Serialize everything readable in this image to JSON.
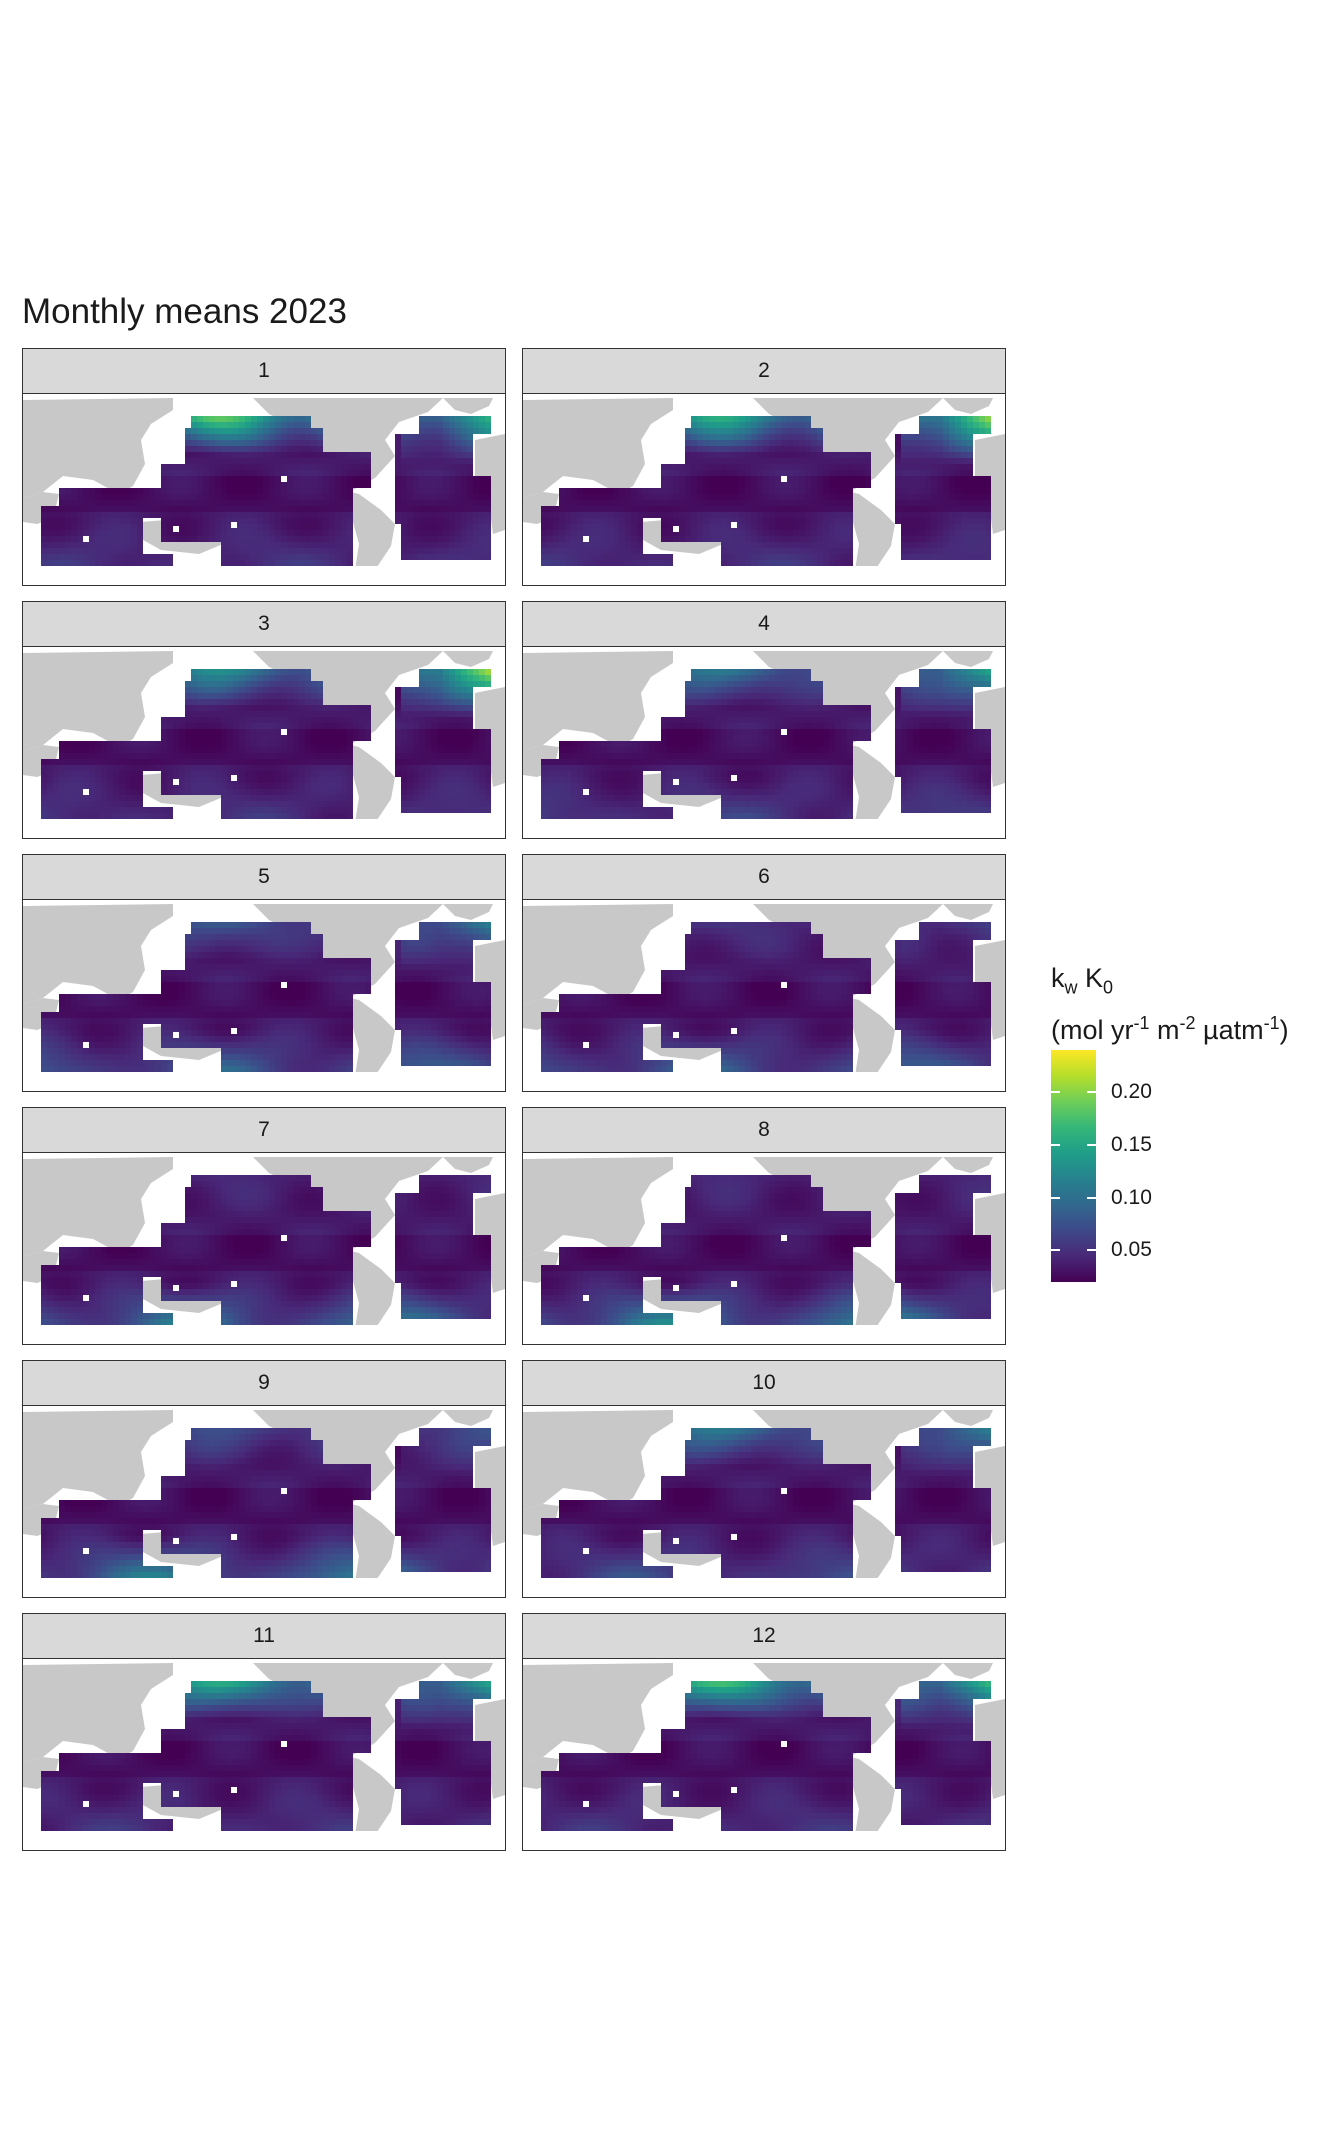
{
  "title": "Monthly means 2023",
  "panels": [
    {
      "label": "1",
      "month": 1
    },
    {
      "label": "2",
      "month": 2
    },
    {
      "label": "3",
      "month": 3
    },
    {
      "label": "4",
      "month": 4
    },
    {
      "label": "5",
      "month": 5
    },
    {
      "label": "6",
      "month": 6
    },
    {
      "label": "7",
      "month": 7
    },
    {
      "label": "8",
      "month": 8
    },
    {
      "label": "9",
      "month": 9
    },
    {
      "label": "10",
      "month": 10
    },
    {
      "label": "11",
      "month": 11
    },
    {
      "label": "12",
      "month": 12
    }
  ],
  "legend": {
    "title_k": "k",
    "title_w": "w",
    "title_K": " K",
    "title_0": "0",
    "unit_open": "(mol yr",
    "unit_sup1": "-1",
    "unit_m": " m",
    "unit_sup2": "-2",
    "unit_uatm": " µatm",
    "unit_sup3": "-1",
    "unit_close": ")",
    "ticks": [
      "0.20",
      "0.15",
      "0.10",
      "0.05"
    ],
    "tick_values": [
      0.2,
      0.15,
      0.1,
      0.05
    ],
    "range": [
      0.02,
      0.24
    ],
    "colors": [
      "#440154",
      "#482878",
      "#3e4989",
      "#31688e",
      "#26828e",
      "#1f9e89",
      "#35b779",
      "#6ece58",
      "#b5de2b",
      "#fde725"
    ]
  },
  "colors": {
    "land": "#c8c8c8",
    "strip": "#d9d9d9",
    "border": "#333333"
  },
  "chart_data": {
    "type": "heatmap",
    "title": "Monthly means 2023",
    "facet_labels": [
      "1",
      "2",
      "3",
      "4",
      "5",
      "6",
      "7",
      "8",
      "9",
      "10",
      "11",
      "12"
    ],
    "value_range": [
      0.02,
      0.24
    ],
    "north_pacific_max": [
      0.2,
      0.17,
      0.14,
      0.12,
      0.09,
      0.06,
      0.05,
      0.05,
      0.08,
      0.12,
      0.17,
      0.19
    ],
    "north_atlantic_max": [
      0.18,
      0.23,
      0.24,
      0.17,
      0.13,
      0.07,
      0.05,
      0.05,
      0.09,
      0.13,
      0.17,
      0.19
    ],
    "southern_band_max": [
      0.06,
      0.06,
      0.06,
      0.07,
      0.1,
      0.1,
      0.12,
      0.13,
      0.12,
      0.08,
      0.06,
      0.06
    ]
  }
}
